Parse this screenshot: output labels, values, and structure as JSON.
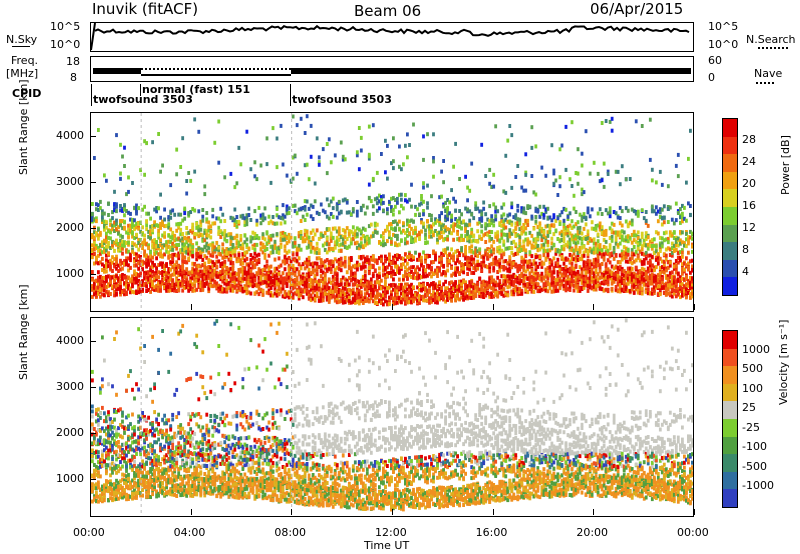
{
  "header": {
    "station": "Inuvik (fitACF)",
    "beam": "Beam 06",
    "date": "06/Apr/2015"
  },
  "left_labels": {
    "nsky": "N.Sky",
    "freq_line1": "Freq.",
    "freq_line2": "[MHz]",
    "cpid": "CPID"
  },
  "right_labels": {
    "nsearch": "N.Search",
    "nave": "Nave"
  },
  "noise_panel": {
    "yticks_left": [
      "10^5",
      "10^0"
    ],
    "yticks_right": [
      "10^5",
      "10^0"
    ]
  },
  "freq_panel": {
    "yticks_left": [
      "18",
      "8"
    ],
    "yticks_right": [
      "60",
      "0"
    ]
  },
  "cpid_modes": [
    {
      "label": "twofsound 3503"
    },
    {
      "label": "normal (fast) 151"
    },
    {
      "label": "twofsound 3503"
    }
  ],
  "colors": {
    "power": [
      "#1020e0",
      "#2a4fb0",
      "#3b7d80",
      "#5aa050",
      "#7ccd30",
      "#d8d020",
      "#f0a010",
      "#f06a10",
      "#ee3010",
      "#e00000"
    ],
    "velocity": [
      "#3040c0",
      "#2f6fa0",
      "#3a8a6a",
      "#50a040",
      "#7ccd30",
      "#c8c8c0",
      "#e0b020",
      "#f09020",
      "#f05020",
      "#e00000"
    ],
    "grey_band": "#c8c8c0"
  },
  "chart_data": [
    {
      "type": "heatmap",
      "panel": "power",
      "ylabel": "Slant Range [km]",
      "yticks": [
        "1000",
        "2000",
        "3000",
        "4000"
      ],
      "ylim": [
        200,
        4500
      ],
      "xlim_hours": [
        0,
        24
      ],
      "colorbar": {
        "label": "Power [dB]",
        "ticks": [
          "4",
          "8",
          "12",
          "16",
          "20",
          "24",
          "28"
        ],
        "range": [
          0,
          32
        ]
      }
    },
    {
      "type": "heatmap",
      "panel": "velocity",
      "ylabel": "Slant Range [km]",
      "yticks": [
        "1000",
        "2000",
        "3000",
        "4000"
      ],
      "ylim": [
        200,
        4500
      ],
      "xlim_hours": [
        0,
        24
      ],
      "colorbar": {
        "label": "Velocity [m s⁻¹]",
        "ticks": [
          "1000",
          "500",
          "100",
          "25",
          "-25",
          "-100",
          "-500",
          "-1000"
        ]
      }
    }
  ],
  "xaxis": {
    "label": "Time UT",
    "ticks": [
      "00:00",
      "04:00",
      "08:00",
      "12:00",
      "16:00",
      "20:00",
      "00:00"
    ]
  }
}
